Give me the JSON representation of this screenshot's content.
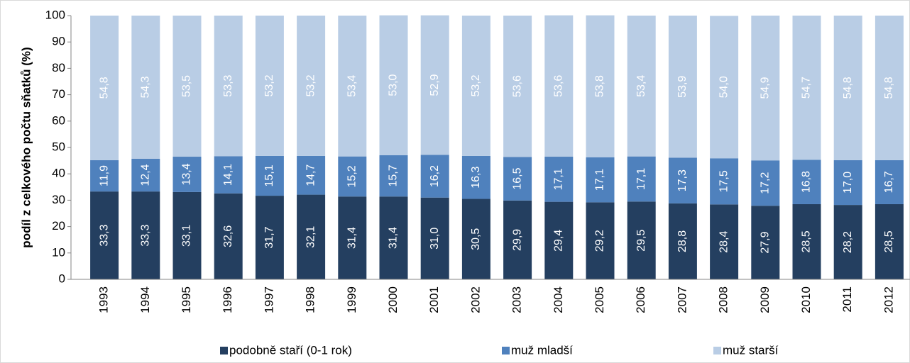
{
  "chart_data": {
    "type": "bar",
    "stacked": true,
    "y_label": "podíl z  celkového počtu sňatků (%)",
    "categories": [
      "1993",
      "1994",
      "1995",
      "1996",
      "1997",
      "1998",
      "1999",
      "2000",
      "2001",
      "2002",
      "2003",
      "2004",
      "2005",
      "2006",
      "2007",
      "2008",
      "2009",
      "2010",
      "2011",
      "2012"
    ],
    "series": [
      {
        "name": "podobně staří (0-1 rok)",
        "color": "#243f60",
        "values": [
          33.3,
          33.3,
          33.1,
          32.6,
          31.7,
          32.1,
          31.4,
          31.4,
          31.0,
          30.5,
          29.9,
          29.4,
          29.2,
          29.5,
          28.8,
          28.4,
          27.9,
          28.5,
          28.2,
          28.5
        ],
        "value_labels": [
          "33,3",
          "33,3",
          "33,1",
          "32,6",
          "31,7",
          "32,1",
          "31,4",
          "31,4",
          "31,0",
          "30,5",
          "29,9",
          "29,4",
          "29,2",
          "29,5",
          "28,8",
          "28,4",
          "27,9",
          "28,5",
          "28,2",
          "28,5"
        ]
      },
      {
        "name": "muž mladší",
        "color": "#4f81bd",
        "values": [
          11.9,
          12.4,
          13.4,
          14.1,
          15.1,
          14.7,
          15.2,
          15.7,
          16.2,
          16.3,
          16.5,
          17.1,
          17.1,
          17.1,
          17.3,
          17.5,
          17.2,
          16.8,
          17.0,
          16.7
        ],
        "value_labels": [
          "11,9",
          "12,4",
          "13,4",
          "14,1",
          "15,1",
          "14,7",
          "15,2",
          "15,7",
          "16,2",
          "16,3",
          "16,5",
          "17,1",
          "17,1",
          "17,1",
          "17,3",
          "17,5",
          "17,2",
          "16,8",
          "17,0",
          "16,7"
        ]
      },
      {
        "name": "muž starší",
        "color": "#b9cde5",
        "values": [
          54.8,
          54.3,
          53.5,
          53.3,
          53.2,
          53.2,
          53.4,
          53.0,
          52.9,
          53.2,
          53.6,
          53.6,
          53.8,
          53.4,
          53.9,
          54.0,
          54.9,
          54.7,
          54.8,
          54.8
        ],
        "value_labels": [
          "54,8",
          "54,3",
          "53,5",
          "53,3",
          "53,2",
          "53,2",
          "53,4",
          "53,0",
          "52,9",
          "53,2",
          "53,6",
          "53,6",
          "53,8",
          "53,4",
          "53,9",
          "54,0",
          "54,9",
          "54,7",
          "54,8",
          "54,8"
        ]
      }
    ],
    "ylim": [
      0,
      100
    ],
    "yticks": [
      0,
      10,
      20,
      30,
      40,
      50,
      60,
      70,
      80,
      90,
      100
    ],
    "grid": false,
    "legend": "bottom"
  }
}
